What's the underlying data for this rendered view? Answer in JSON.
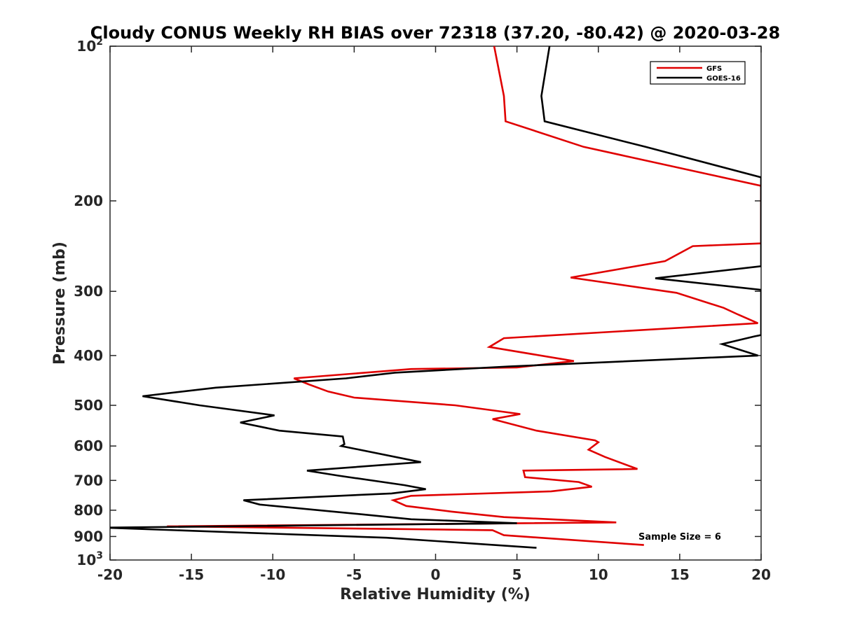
{
  "chart_data": {
    "type": "line",
    "title": "Cloudy CONUS Weekly RH BIAS over 72318 (37.20, -80.42) @ 2020-03-28",
    "xlabel": "Relative Humidity (%)",
    "ylabel": "Pressure (mb)",
    "xlim": [
      -20,
      20
    ],
    "ylim": [
      100,
      1000
    ],
    "y_scale": "log",
    "y_direction": "reversed",
    "x_ticks": [
      "-20",
      "-15",
      "-10",
      "-5",
      "0",
      "5",
      "10",
      "15",
      "20"
    ],
    "y_ticks": [
      {
        "base": "10",
        "exp": "2"
      },
      {
        "base": "200",
        "exp": ""
      },
      {
        "base": "300",
        "exp": ""
      },
      {
        "base": "400",
        "exp": ""
      },
      {
        "base": "500",
        "exp": ""
      },
      {
        "base": "600",
        "exp": ""
      },
      {
        "base": "700",
        "exp": ""
      },
      {
        "base": "800",
        "exp": ""
      },
      {
        "base": "900",
        "exp": ""
      },
      {
        "base": "10",
        "exp": "3"
      }
    ],
    "legend_position": "top-right",
    "annotation": "Sample Size = 6",
    "series": [
      {
        "name": "GFS",
        "color": "#e00000",
        "points": [
          [
            3.6,
            100
          ],
          [
            4.2,
            125
          ],
          [
            4.3,
            140
          ],
          [
            9.1,
            157
          ],
          [
            20,
            187
          ],
          [
            20,
            242
          ],
          [
            15.8,
            245
          ],
          [
            14.1,
            262
          ],
          [
            8.3,
            282
          ],
          [
            14.8,
            302
          ],
          [
            17.7,
            323
          ],
          [
            18.6,
            333
          ],
          [
            19.8,
            346
          ],
          [
            4.2,
            370
          ],
          [
            3.3,
            385
          ],
          [
            8.5,
            410
          ],
          [
            5.0,
            422
          ],
          [
            -1.5,
            425
          ],
          [
            -8.7,
            443
          ],
          [
            -7.8,
            455
          ],
          [
            -6.6,
            470
          ],
          [
            -5.0,
            483
          ],
          [
            1.2,
            500
          ],
          [
            5.2,
            520
          ],
          [
            3.5,
            532
          ],
          [
            6.2,
            560
          ],
          [
            9.8,
            585
          ],
          [
            10.0,
            590
          ],
          [
            9.4,
            610
          ],
          [
            10.4,
            630
          ],
          [
            12.4,
            665
          ],
          [
            5.4,
            670
          ],
          [
            5.5,
            690
          ],
          [
            8.8,
            705
          ],
          [
            9.6,
            720
          ],
          [
            7.1,
            735
          ],
          [
            -1.5,
            750
          ],
          [
            -2.6,
            765
          ],
          [
            -1.8,
            785
          ],
          [
            1.0,
            805
          ],
          [
            4.2,
            825
          ],
          [
            11.1,
            845
          ],
          [
            -16.5,
            860
          ],
          [
            3.5,
            875
          ],
          [
            4.2,
            895
          ],
          [
            12.8,
            935
          ]
        ]
      },
      {
        "name": "GOES-16",
        "color": "#000000",
        "points": [
          [
            7.0,
            100
          ],
          [
            6.5,
            125
          ],
          [
            6.7,
            140
          ],
          [
            12.9,
            157
          ],
          [
            20,
            180
          ],
          [
            20,
            268
          ],
          [
            13.5,
            283
          ],
          [
            20,
            298
          ],
          [
            20,
            365
          ],
          [
            19.6,
            367
          ],
          [
            17.6,
            380
          ],
          [
            19.8,
            400
          ],
          [
            4.5,
            420
          ],
          [
            -2.5,
            432
          ],
          [
            -5.5,
            443
          ],
          [
            -13.5,
            462
          ],
          [
            -18.0,
            480
          ],
          [
            -14.5,
            500
          ],
          [
            -9.9,
            523
          ],
          [
            -12.0,
            540
          ],
          [
            -9.6,
            560
          ],
          [
            -5.7,
            575
          ],
          [
            -5.6,
            595
          ],
          [
            -5.8,
            600
          ],
          [
            -0.9,
            645
          ],
          [
            -7.9,
            670
          ],
          [
            -6.0,
            685
          ],
          [
            -1.9,
            715
          ],
          [
            -0.6,
            728
          ],
          [
            -2.7,
            742
          ],
          [
            -11.8,
            765
          ],
          [
            -10.8,
            780
          ],
          [
            -4.5,
            815
          ],
          [
            -1.5,
            833
          ],
          [
            5.0,
            848
          ],
          [
            -20.4,
            865
          ],
          [
            -3.0,
            905
          ],
          [
            6.2,
            947
          ]
        ]
      }
    ]
  }
}
